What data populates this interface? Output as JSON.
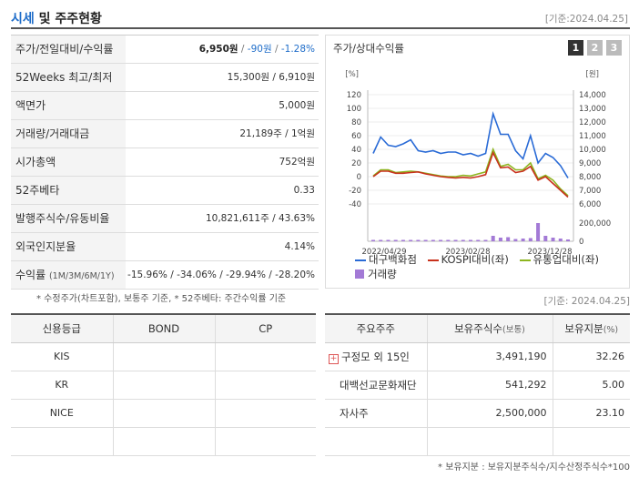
{
  "header": {
    "title_part1": "시세",
    "title_part2": " 및 주주현황",
    "date": "[기준:2024.04.25]"
  },
  "info": {
    "price_label": "주가/전일대비/수익률",
    "price": "6,950원",
    "change": "-90원",
    "change_rate": "-1.28%",
    "weeks52_label": "52Weeks 최고/최저",
    "weeks52_value": "15,300원 / 6,910원",
    "par_label": "액면가",
    "par_value": "5,000원",
    "volume_label": "거래량/거래대금",
    "volume_value": "21,189주 / 1억원",
    "mcap_label": "시가총액",
    "mcap_value": "752억원",
    "beta_label": "52주베타",
    "beta_value": "0.33",
    "shares_label": "발행주식수/유동비율",
    "shares_value": "10,821,611주 / 43.63%",
    "foreign_label": "외국인지분율",
    "foreign_value": "4.14%",
    "return_label": "수익률",
    "return_periods": "(1M/3M/6M/1Y)",
    "return_value": "-15.96% / -34.06% / -29.94% / -28.20%",
    "footnote": "* 수정주가(차트포함), 보통주 기준, * 52주베타: 주간수익률 기준"
  },
  "chart_box": {
    "title": "주가/상대수익률",
    "pages": [
      "1",
      "2",
      "3"
    ],
    "legend": [
      {
        "name": "대구백화점",
        "color": "#2a6bd6"
      },
      {
        "name": "KOSPI대비(좌)",
        "color": "#c8311c"
      },
      {
        "name": "유통업대비(좌)",
        "color": "#8db51f"
      },
      {
        "name": "거래량",
        "color": "#a37ad6"
      }
    ]
  },
  "chart_data": {
    "type": "line",
    "left_unit": "[%]",
    "right_unit": "[원]",
    "left_ticks": [
      "120",
      "100",
      "80",
      "60",
      "40",
      "20",
      "0",
      "-20",
      "-40"
    ],
    "right_ticks": [
      "14,000",
      "13,000",
      "12,000",
      "11,000",
      "10,000",
      "9,000",
      "8,000",
      "7,000",
      "6,000"
    ],
    "volume_ticks": [
      "200,000",
      "0"
    ],
    "x_labels": [
      "2022/04/29",
      "2023/02/28",
      "2023/12/28"
    ],
    "ylim_left": [
      -40,
      120
    ],
    "ylim_right": [
      6000,
      14000
    ],
    "series": [
      {
        "name": "대구백화점",
        "axis": "right",
        "color": "#2a6bd6",
        "values": [
          9700,
          10900,
          10300,
          10200,
          10400,
          10700,
          9900,
          9800,
          9900,
          9700,
          9800,
          9800,
          9600,
          9700,
          9500,
          9700,
          12600,
          11100,
          11100,
          9900,
          9300,
          11000,
          9000,
          9700,
          9400,
          8800,
          7900
        ]
      },
      {
        "name": "KOSPI대비(좌)",
        "axis": "left",
        "color": "#c8311c",
        "values": [
          0,
          8,
          8,
          5,
          5,
          6,
          7,
          4,
          2,
          0,
          -1,
          -2,
          -1,
          -2,
          0,
          3,
          35,
          13,
          14,
          6,
          8,
          15,
          -5,
          0,
          -10,
          -20,
          -30
        ]
      },
      {
        "name": "유통업대비(좌)",
        "axis": "left",
        "color": "#8db51f",
        "values": [
          1,
          10,
          10,
          6,
          7,
          8,
          7,
          5,
          3,
          1,
          0,
          0,
          2,
          1,
          4,
          7,
          40,
          15,
          18,
          10,
          10,
          20,
          -3,
          2,
          -5,
          -18,
          -28
        ]
      }
    ],
    "volume": [
      5000,
      15000,
      6000,
      4000,
      5000,
      3000,
      4000,
      3000,
      3000,
      4000,
      3000,
      3000,
      5000,
      4000,
      7000,
      12000,
      60000,
      40000,
      45000,
      25000,
      30000,
      35000,
      200000,
      60000,
      40000,
      30000,
      20000
    ]
  },
  "date2": "[기준: 2024.04.25]",
  "credit": {
    "headers": [
      "신용등급",
      "BOND",
      "CP"
    ],
    "rows": [
      [
        "KIS",
        "",
        ""
      ],
      [
        "KR",
        "",
        ""
      ],
      [
        "NICE",
        "",
        ""
      ],
      [
        "",
        "",
        ""
      ]
    ]
  },
  "holders": {
    "headers": [
      "주요주주",
      "보유주식수",
      "(보통)",
      "보유지분",
      "(%)"
    ],
    "rows": [
      {
        "name": "구정모 외 15인",
        "shares": "3,491,190",
        "pct": "32.26",
        "expand": true
      },
      {
        "name": "대백선교문화재단",
        "shares": "541,292",
        "pct": "5.00",
        "expand": false
      },
      {
        "name": "자사주",
        "shares": "2,500,000",
        "pct": "23.10",
        "expand": false
      }
    ],
    "footnote": "* 보유지분 : 보유지분주식수/지수산정주식수*100"
  }
}
